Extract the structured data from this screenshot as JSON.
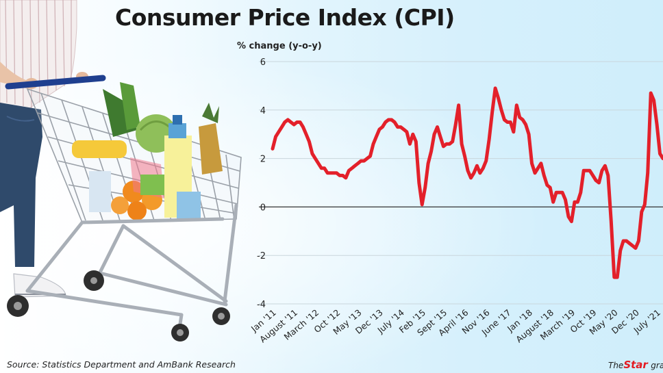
{
  "title": "Consumer Price Index (CPI)",
  "source": "Source: Statistics Department and AmBank Research",
  "credit": {
    "the": "The",
    "star": "Star",
    "rest": "grap"
  },
  "chart_data": {
    "type": "line",
    "title": "Consumer Price Index (CPI)",
    "ylabel": "% change (y-o-y)",
    "xlabel": "",
    "ylim": [
      -4,
      6
    ],
    "y_ticks": [
      "6",
      "4",
      "2",
      "0",
      "-2",
      "-4"
    ],
    "x_ticks": [
      "Jan '11",
      "August '11",
      "March '12",
      "Oct '12",
      "May '13",
      "Dec '13",
      "July '14",
      "Feb '15",
      "Sept '15",
      "April '16",
      "Nov '16",
      "June '17",
      "Jan '18",
      "August '18",
      "March '19",
      "Oct '19",
      "May '20",
      "Dec '20",
      "July '21"
    ],
    "x_tick_months": [
      0,
      7,
      14,
      21,
      28,
      35,
      42,
      49,
      56,
      63,
      70,
      77,
      84,
      91,
      98,
      105,
      112,
      119,
      126
    ],
    "colors": {
      "line": "#e3202a",
      "zero_line": "#333333",
      "grid": "#c9d6dc"
    },
    "series": [
      {
        "values": [
          2.4,
          2.9,
          3.1,
          3.3,
          3.5,
          3.6,
          3.5,
          3.4,
          3.5,
          3.5,
          3.3,
          3.0,
          2.7,
          2.2,
          2.0,
          1.8,
          1.6,
          1.6,
          1.4,
          1.4,
          1.4,
          1.4,
          1.3,
          1.3,
          1.2,
          1.5,
          1.6,
          1.7,
          1.8,
          1.9,
          1.9,
          2.0,
          2.1,
          2.6,
          2.9,
          3.2,
          3.3,
          3.5,
          3.6,
          3.6,
          3.5,
          3.3,
          3.3,
          3.2,
          3.1,
          2.6,
          3.0,
          2.7,
          1.0,
          0.1,
          0.8,
          1.8,
          2.3,
          3.0,
          3.3,
          2.9,
          2.5,
          2.6,
          2.6,
          2.7,
          3.4,
          4.2,
          2.6,
          2.1,
          1.5,
          1.2,
          1.4,
          1.7,
          1.4,
          1.6,
          1.9,
          2.8,
          3.9,
          4.9,
          4.5,
          4.0,
          3.6,
          3.5,
          3.5,
          3.1,
          4.2,
          3.7,
          3.6,
          3.4,
          3.0,
          1.8,
          1.4,
          1.6,
          1.8,
          1.3,
          0.9,
          0.8,
          0.2,
          0.6,
          0.6,
          0.6,
          0.3,
          -0.4,
          -0.6,
          0.2,
          0.2,
          0.6,
          1.5,
          1.5,
          1.5,
          1.3,
          1.1,
          1.0,
          1.5,
          1.7,
          1.3,
          -0.6,
          -2.9,
          -2.9,
          -1.8,
          -1.4,
          -1.4,
          -1.5,
          -1.6,
          -1.7,
          -1.4,
          -0.2,
          0.1,
          1.4,
          4.7,
          4.4,
          3.4,
          2.2,
          2.0
        ]
      }
    ],
    "grid": true,
    "legend": "none"
  }
}
